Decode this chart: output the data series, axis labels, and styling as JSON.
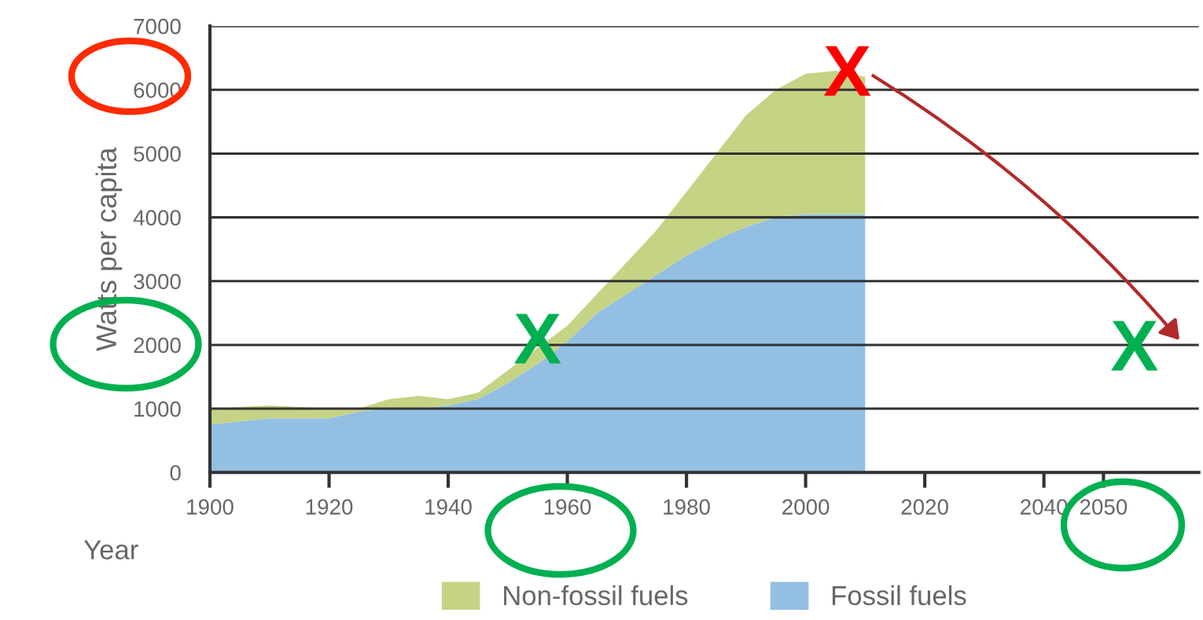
{
  "chart_data": {
    "type": "area",
    "stacked": true,
    "xlabel": "Year",
    "ylabel": "Watts per capita",
    "x": [
      1900,
      1910,
      1920,
      1925,
      1930,
      1935,
      1940,
      1945,
      1950,
      1955,
      1960,
      1965,
      1970,
      1975,
      1980,
      1985,
      1990,
      1995,
      2000,
      2005,
      2010
    ],
    "series": [
      {
        "name": "Fossil fuels",
        "color": "#93bfe3",
        "values": [
          750,
          850,
          850,
          950,
          1000,
          1000,
          1050,
          1150,
          1400,
          1700,
          2050,
          2500,
          2800,
          3100,
          3400,
          3650,
          3850,
          4000,
          4050,
          4050,
          4050
        ]
      },
      {
        "name": "Non-fossil fuels",
        "color": "#c5d385",
        "values": [
          250,
          200,
          150,
          50,
          150,
          200,
          100,
          100,
          200,
          250,
          250,
          300,
          500,
          700,
          1000,
          1350,
          1750,
          2000,
          2200,
          2250,
          2150
        ]
      }
    ],
    "xlim": [
      1900,
      2066
    ],
    "xticks": [
      1900,
      1920,
      1940,
      1960,
      1980,
      2000,
      2020,
      2040,
      2050
    ],
    "ylim": [
      0,
      7000
    ],
    "yticks": [
      0,
      1000,
      2000,
      3000,
      4000,
      5000,
      6000,
      7000
    ],
    "grid": "y",
    "legend": "bottom",
    "annotations": [
      {
        "text": "X",
        "x": 2007,
        "y": 6200
      },
      {
        "text": "X",
        "x": 1955,
        "y": 2000
      },
      "X"
    ]
  }
}
